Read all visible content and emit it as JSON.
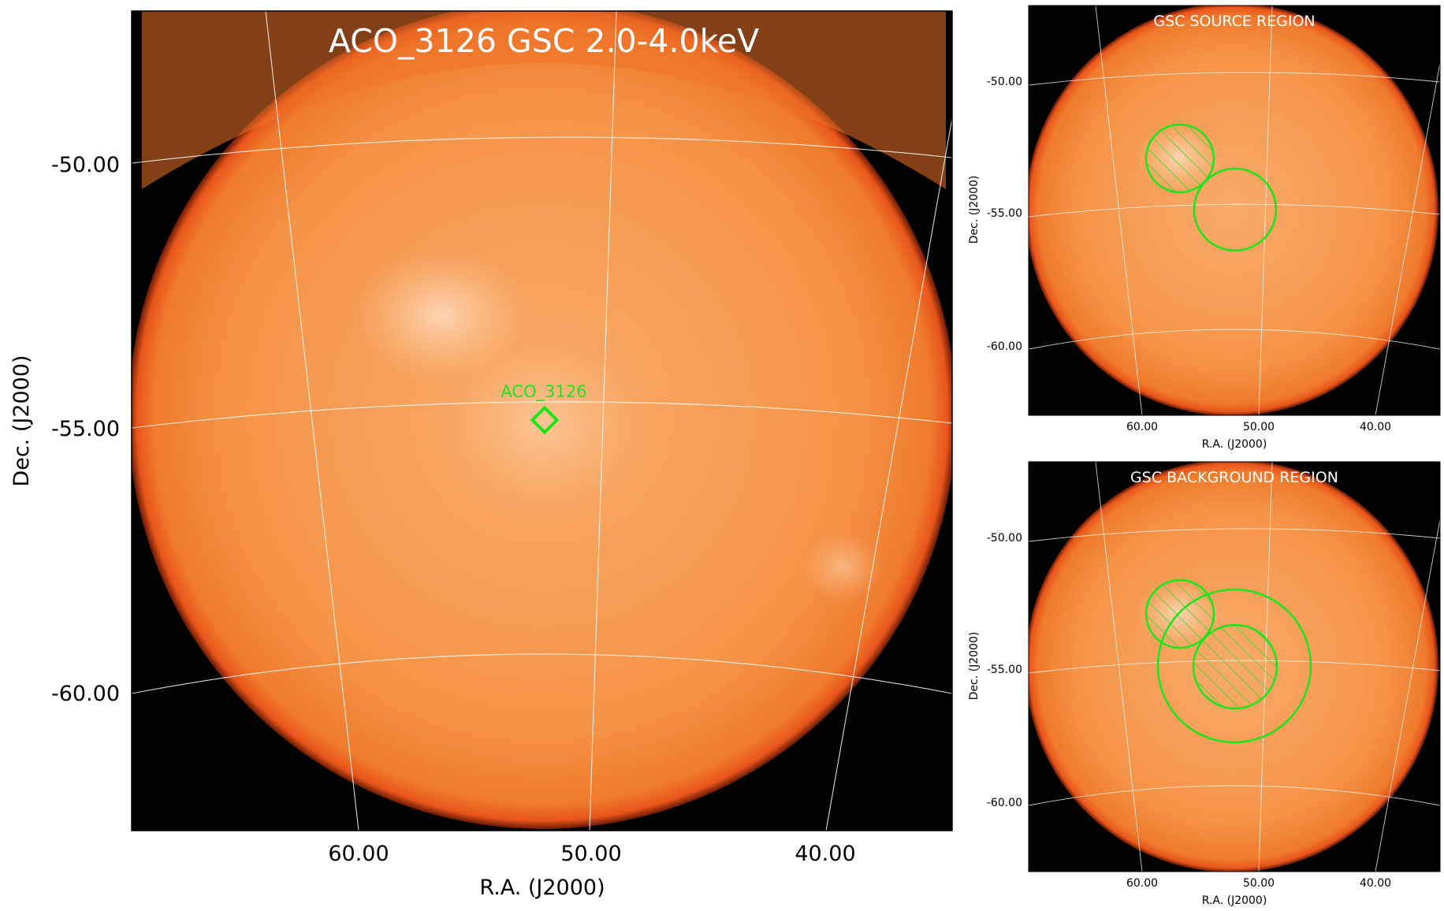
{
  "main_panel": {
    "title": "ACO_3126 GSC 2.0-4.0keV",
    "source_label": "ACO_3126",
    "y_ticks": [
      "-50.00",
      "-55.00",
      "-60.00"
    ],
    "x_ticks": [
      "60.00",
      "50.00",
      "40.00"
    ],
    "xlabel": "R.A. (J2000)",
    "ylabel": "Dec. (J2000)"
  },
  "source_panel": {
    "title": "GSC SOURCE REGION",
    "y_ticks": [
      "-50.00",
      "-55.00",
      "-60.00"
    ],
    "x_ticks": [
      "60.00",
      "50.00",
      "40.00"
    ],
    "xlabel": "R.A. (J2000)",
    "ylabel": "Dec. (J2000)"
  },
  "background_panel": {
    "title": "GSC BACKGROUND REGION",
    "y_ticks": [
      "-50.00",
      "-55.00",
      "-60.00"
    ],
    "x_ticks": [
      "60.00",
      "50.00",
      "40.00"
    ],
    "xlabel": "R.A. (J2000)",
    "ylabel": "Dec. (J2000)"
  },
  "colors": {
    "background": "#000000",
    "disk": "#f5893a",
    "disk_bright": "#fcc99a",
    "disk_edge": "#e8551b",
    "region": "#19e619",
    "grid": "#ffffff"
  }
}
